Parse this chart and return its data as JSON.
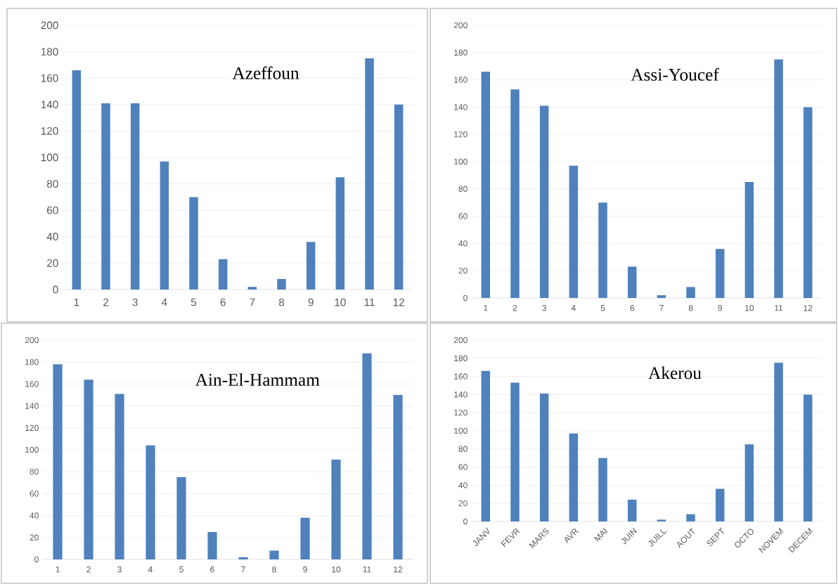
{
  "chart_data": [
    {
      "type": "bar",
      "title": "Azeffoun",
      "categories": [
        "1",
        "2",
        "3",
        "4",
        "5",
        "6",
        "7",
        "8",
        "9",
        "10",
        "11",
        "12"
      ],
      "values": [
        166,
        141,
        141,
        97,
        70,
        23,
        2,
        8,
        36,
        85,
        175,
        140
      ],
      "color": "#4f81bd",
      "ylim": [
        0,
        200
      ],
      "yticks": [
        0,
        20,
        40,
        60,
        80,
        100,
        120,
        140,
        160,
        180,
        200
      ],
      "grid": "y"
    },
    {
      "type": "bar",
      "title": "Assi-Youcef",
      "categories": [
        "1",
        "2",
        "3",
        "4",
        "5",
        "6",
        "7",
        "8",
        "9",
        "10",
        "11",
        "12"
      ],
      "values": [
        166,
        153,
        141,
        97,
        70,
        23,
        2,
        8,
        36,
        85,
        175,
        140
      ],
      "color": "#4f81bd",
      "ylim": [
        0,
        200
      ],
      "yticks": [
        0,
        20,
        40,
        60,
        80,
        100,
        120,
        140,
        160,
        180,
        200
      ],
      "grid": "y"
    },
    {
      "type": "bar",
      "title": "Ain-El-Hammam",
      "categories": [
        "1",
        "2",
        "3",
        "4",
        "5",
        "6",
        "7",
        "8",
        "9",
        "10",
        "11",
        "12"
      ],
      "values": [
        178,
        164,
        151,
        104,
        75,
        25,
        2,
        8,
        38,
        91,
        188,
        150
      ],
      "color": "#4f81bd",
      "ylim": [
        0,
        200
      ],
      "yticks": [
        0,
        20,
        40,
        60,
        80,
        100,
        120,
        140,
        160,
        180,
        200
      ],
      "grid": "y"
    },
    {
      "type": "bar",
      "title": "Akerou",
      "categories": [
        "JANV",
        "FEVR",
        "MARS",
        "AVR",
        "MAI",
        "JUIN",
        "JUILL",
        "AOUT",
        "SEPT",
        "OCTO",
        "NOVEM",
        "DECEM"
      ],
      "values": [
        166,
        153,
        141,
        97,
        70,
        24,
        2,
        8,
        36,
        85,
        175,
        140
      ],
      "color": "#4f81bd",
      "ylim": [
        0,
        200
      ],
      "yticks": [
        0,
        20,
        40,
        60,
        80,
        100,
        120,
        140,
        160,
        180,
        200
      ],
      "grid": "y"
    }
  ]
}
